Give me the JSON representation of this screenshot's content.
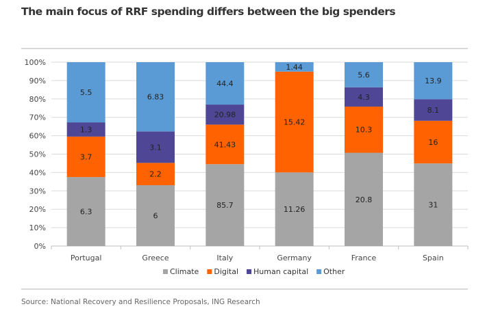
{
  "title": "The main focus of RRF spending differs between the big spenders",
  "source": "Source: National Recovery and Resilience Proposals, ING Research",
  "chart_data": {
    "type": "bar",
    "stacked": "percent",
    "title": "The main focus of RRF spending differs between the big spenders",
    "categories": [
      "Portugal",
      "Greece",
      "Italy",
      "Germany",
      "France",
      "Spain"
    ],
    "series": [
      {
        "name": "Climate",
        "color": "#a5a5a5",
        "values": [
          6.3,
          6,
          85.7,
          11.26,
          20.8,
          31
        ]
      },
      {
        "name": "Digital",
        "color": "#ff6200",
        "values": [
          3.7,
          2.2,
          41.43,
          15.42,
          10.3,
          16
        ]
      },
      {
        "name": "Human capital",
        "color": "#4f4796",
        "values": [
          1.3,
          3.1,
          20.98,
          null,
          4.3,
          8.1
        ]
      },
      {
        "name": "Other",
        "color": "#5b9bd5",
        "values": [
          5.5,
          6.83,
          44.4,
          1.44,
          5.6,
          13.9
        ]
      }
    ],
    "yticks": [
      "0%",
      "10%",
      "20%",
      "30%",
      "40%",
      "50%",
      "60%",
      "70%",
      "80%",
      "90%",
      "100%"
    ],
    "ylim": [
      0,
      100
    ],
    "xlabel": "",
    "ylabel": "",
    "grid": true,
    "legend": "bottom"
  }
}
